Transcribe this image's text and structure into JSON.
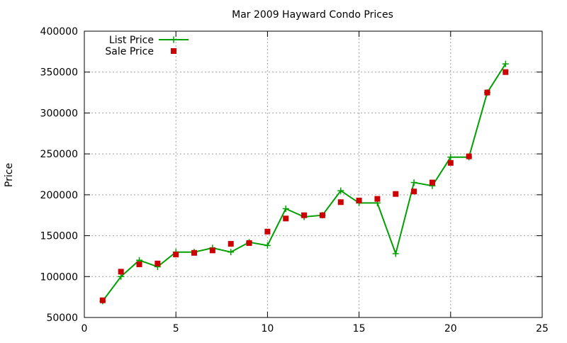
{
  "chart_data": {
    "type": "line",
    "title": "Mar 2009 Hayward Condo Prices",
    "xlabel": "",
    "ylabel": "Price",
    "xlim": [
      0,
      25
    ],
    "ylim": [
      50000,
      400000
    ],
    "x_ticks": [
      0,
      5,
      10,
      15,
      20,
      25
    ],
    "y_ticks": [
      50000,
      100000,
      150000,
      200000,
      250000,
      300000,
      350000,
      400000
    ],
    "grid": true,
    "legend_position": "top-left",
    "series": [
      {
        "name": "List Price",
        "style": "line-plus",
        "color": "#00a000",
        "x": [
          1,
          2,
          3,
          4,
          5,
          6,
          7,
          8,
          9,
          10,
          11,
          12,
          13,
          14,
          15,
          16,
          17,
          18,
          19,
          20,
          21,
          22,
          23
        ],
        "values": [
          70000,
          100000,
          120000,
          112000,
          130000,
          130000,
          135000,
          130000,
          142000,
          138000,
          183000,
          173000,
          175000,
          205000,
          190000,
          190000,
          128000,
          215000,
          211000,
          246000,
          246000,
          325000,
          360000
        ]
      },
      {
        "name": "Sale Price",
        "style": "square-markers",
        "color": "#cc0000",
        "x": [
          1,
          2,
          3,
          4,
          5,
          6,
          7,
          8,
          9,
          10,
          11,
          12,
          13,
          14,
          15,
          16,
          17,
          18,
          19,
          20,
          21,
          22,
          23
        ],
        "values": [
          71000,
          106000,
          115000,
          116000,
          127000,
          129000,
          132000,
          140000,
          141000,
          155000,
          171000,
          175000,
          175000,
          191000,
          193000,
          195000,
          201000,
          204000,
          215000,
          239000,
          247000,
          325000,
          350000
        ]
      }
    ]
  }
}
